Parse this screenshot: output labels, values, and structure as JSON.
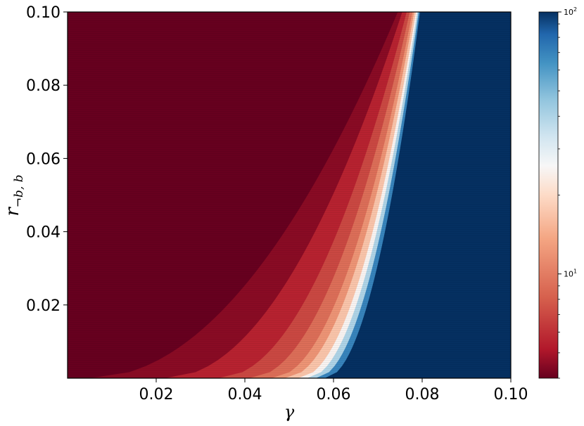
{
  "chart_data": {
    "type": "heatmap",
    "title": "",
    "xlabel": "γ",
    "ylabel": {
      "main": "r",
      "subscript": "¬b, b"
    },
    "xlim": [
      0.0,
      0.1
    ],
    "ylim": [
      0.0,
      0.1
    ],
    "x_ticks": [
      {
        "value": 0.02,
        "label": "0.02"
      },
      {
        "value": 0.04,
        "label": "0.04"
      },
      {
        "value": 0.06,
        "label": "0.06"
      },
      {
        "value": 0.08,
        "label": "0.08"
      },
      {
        "value": 0.1,
        "label": "0.10"
      }
    ],
    "y_ticks": [
      {
        "value": 0.02,
        "label": "0.02"
      },
      {
        "value": 0.04,
        "label": "0.04"
      },
      {
        "value": 0.06,
        "label": "0.06"
      },
      {
        "value": 0.08,
        "label": "0.08"
      },
      {
        "value": 0.1,
        "label": "0.10"
      }
    ],
    "colormap": "RdBu",
    "colors": {
      "low": "#67001f",
      "mid": "#f7f7f7",
      "high": "#053061"
    },
    "colorbar": {
      "scale": "log",
      "range": [
        4,
        100
      ],
      "major_ticks": [
        {
          "value": 10,
          "base": "10",
          "exp": "1"
        },
        {
          "value": 100,
          "base": "10",
          "exp": "2"
        }
      ]
    },
    "region_boundaries": [
      {
        "level": 4.5,
        "gamma_at_r0": 0.005,
        "gamma_at_rmax": 0.0745
      },
      {
        "level": 5.5,
        "gamma_at_r0": 0.022,
        "gamma_at_rmax": 0.0755
      },
      {
        "level": 7,
        "gamma_at_r0": 0.034,
        "gamma_at_rmax": 0.0765
      },
      {
        "level": 9,
        "gamma_at_r0": 0.041,
        "gamma_at_rmax": 0.0772
      },
      {
        "level": 12,
        "gamma_at_r0": 0.046,
        "gamma_at_rmax": 0.0778
      },
      {
        "level": 17,
        "gamma_at_r0": 0.049,
        "gamma_at_rmax": 0.0782
      },
      {
        "level": 25,
        "gamma_at_r0": 0.052,
        "gamma_at_rmax": 0.0786
      },
      {
        "level": 40,
        "gamma_at_r0": 0.054,
        "gamma_at_rmax": 0.0789
      },
      {
        "level": 70,
        "gamma_at_r0": 0.056,
        "gamma_at_rmax": 0.0792
      },
      {
        "level": 100,
        "gamma_at_r0": 0.058,
        "gamma_at_rmax": 0.0795
      }
    ]
  }
}
